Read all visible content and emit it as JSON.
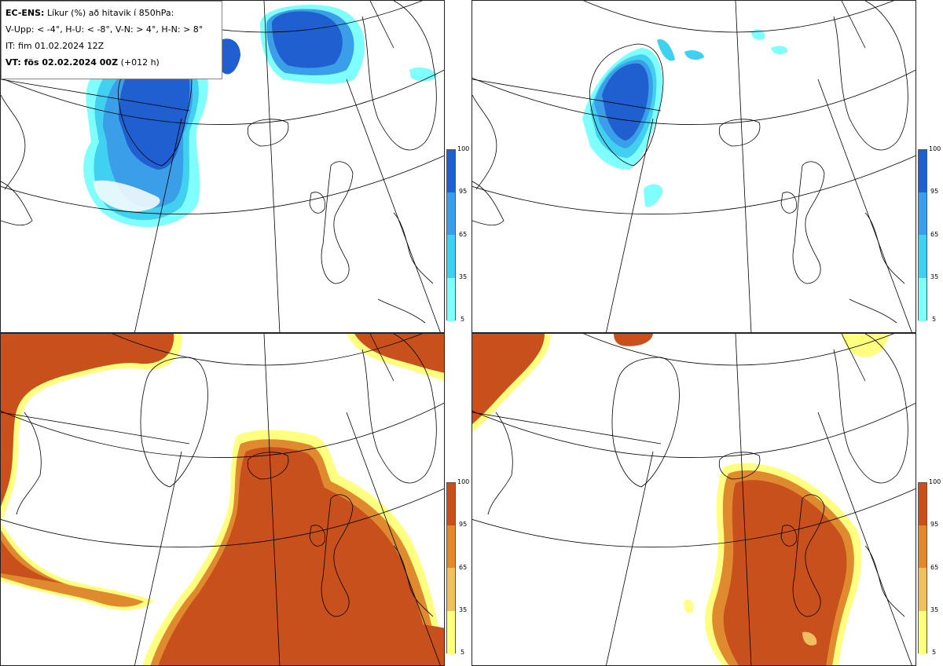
{
  "info": {
    "line1_bold": "EC-ENS:",
    "line1_text": "Líkur (%) að hitavik í 850hPa:",
    "line2": "V-Upp: < -4°, H-U: < -8°, V-N: > 4°, H-N: > 8°",
    "line3": "IT: fim 01.02.2024 12Z",
    "line4_bold": "VT: fös 02.02.2024 00Z",
    "line4_text": "(+012 h)"
  },
  "colors": {
    "cold": [
      "#80ffff",
      "#40d0f0",
      "#3a9ee8",
      "#1f5fd0"
    ],
    "warm": [
      "#ffff80",
      "#f0c060",
      "#e08a30",
      "#c8501c"
    ],
    "coast": "#000000",
    "grid": "#000000"
  },
  "legend": {
    "ticks": [
      "100",
      "95",
      "65",
      "35",
      "5"
    ]
  },
  "panels": [
    {
      "id": "v-upp",
      "scheme": "cold"
    },
    {
      "id": "h-u",
      "scheme": "cold"
    },
    {
      "id": "v-n",
      "scheme": "warm"
    },
    {
      "id": "h-n",
      "scheme": "warm"
    }
  ]
}
